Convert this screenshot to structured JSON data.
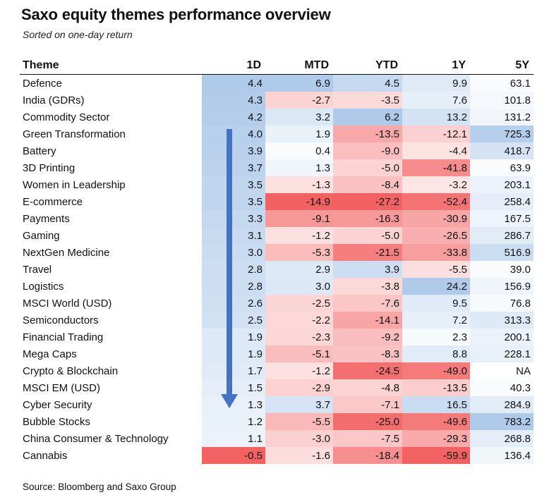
{
  "title": "Saxo equity themes performance overview",
  "subtitle": "Sorted on one-day return",
  "source": "Source: Bloomberg and Saxo Group",
  "chart_data": {
    "type": "table",
    "columns": [
      "Theme",
      "1D",
      "MTD",
      "YTD",
      "1Y",
      "5Y"
    ],
    "rows": [
      {
        "theme": "Defence",
        "values": [
          "4.4",
          "6.9",
          "4.5",
          "9.9",
          "63.1"
        ]
      },
      {
        "theme": "India (GDRs)",
        "values": [
          "4.3",
          "-2.7",
          "-3.5",
          "7.6",
          "101.8"
        ]
      },
      {
        "theme": "Commodity Sector",
        "values": [
          "4.2",
          "3.2",
          "6.2",
          "13.2",
          "131.2"
        ]
      },
      {
        "theme": "Green Transformation",
        "values": [
          "4.0",
          "1.9",
          "-13.5",
          "-12.1",
          "725.3"
        ]
      },
      {
        "theme": "Battery",
        "values": [
          "3.9",
          "0.4",
          "-9.0",
          "-4.4",
          "418.7"
        ]
      },
      {
        "theme": "3D Printing",
        "values": [
          "3.7",
          "1.3",
          "-5.0",
          "-41.8",
          "63.9"
        ]
      },
      {
        "theme": "Women in Leadership",
        "values": [
          "3.5",
          "-1.3",
          "-8.4",
          "-3.2",
          "203.1"
        ]
      },
      {
        "theme": "E-commerce",
        "values": [
          "3.5",
          "-14.9",
          "-27.2",
          "-52.4",
          "258.4"
        ]
      },
      {
        "theme": "Payments",
        "values": [
          "3.3",
          "-9.1",
          "-16.3",
          "-30.9",
          "167.5"
        ]
      },
      {
        "theme": "Gaming",
        "values": [
          "3.1",
          "-1.2",
          "-5.0",
          "-26.5",
          "286.7"
        ]
      },
      {
        "theme": "NextGen Medicine",
        "values": [
          "3.0",
          "-5.3",
          "-21.5",
          "-33.8",
          "516.9"
        ]
      },
      {
        "theme": "Travel",
        "values": [
          "2.8",
          "2.9",
          "3.9",
          "-5.5",
          "39.0"
        ]
      },
      {
        "theme": "Logistics",
        "values": [
          "2.8",
          "3.0",
          "-3.8",
          "24.2",
          "156.9"
        ]
      },
      {
        "theme": "MSCI World (USD)",
        "values": [
          "2.6",
          "-2.5",
          "-7.6",
          "9.5",
          "76.8"
        ]
      },
      {
        "theme": "Semiconductors",
        "values": [
          "2.5",
          "-2.2",
          "-14.1",
          "7.2",
          "313.3"
        ]
      },
      {
        "theme": "Financial Trading",
        "values": [
          "1.9",
          "-2.3",
          "-9.2",
          "2.3",
          "200.1"
        ]
      },
      {
        "theme": "Mega Caps",
        "values": [
          "1.9",
          "-5.1",
          "-8.3",
          "8.8",
          "228.1"
        ]
      },
      {
        "theme": "Crypto & Blockchain",
        "values": [
          "1.7",
          "-1.2",
          "-24.5",
          "-49.0",
          "NA"
        ]
      },
      {
        "theme": "MSCI EM (USD)",
        "values": [
          "1.5",
          "-2.9",
          "-4.8",
          "-13.5",
          "40.3"
        ]
      },
      {
        "theme": "Cyber Security",
        "values": [
          "1.3",
          "3.7",
          "-7.1",
          "16.5",
          "284.9"
        ]
      },
      {
        "theme": "Bubble Stocks",
        "values": [
          "1.2",
          "-5.5",
          "-25.0",
          "-49.6",
          "783.2"
        ]
      },
      {
        "theme": "China Consumer & Technology",
        "values": [
          "1.1",
          "-3.0",
          "-7.5",
          "-29.3",
          "268.8"
        ]
      },
      {
        "theme": "Cannabis",
        "values": [
          "-0.5",
          "-1.6",
          "-18.4",
          "-59.9",
          "136.4"
        ]
      }
    ]
  }
}
